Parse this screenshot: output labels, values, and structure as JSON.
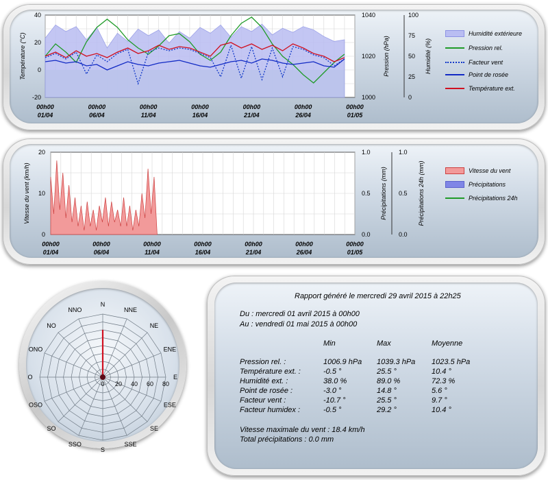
{
  "colors": {
    "humidity_fill": "#b9bdf2",
    "humidity_edge": "#8d93e4",
    "pressure": "#1f9b28",
    "windchill": "#1037c8",
    "dewpoint": "#1129c4",
    "temperature": "#d01020",
    "green_fill": "#c9f0c9",
    "wind_fill": "#f29a9a",
    "wind_edge": "#cc4040",
    "precip": "#7f86e6",
    "precip24": "#1f9b28"
  },
  "chart_data": [
    {
      "type": "line",
      "ylabel_left": "Température (°C)",
      "ylabel_pressure": "Pression (hPa)",
      "ylabel_humidity": "Humidité (%)",
      "y_left_ticks": [
        "40",
        "20",
        "0",
        "-20"
      ],
      "y_pressure_ticks": [
        "1040",
        "1020",
        "1000"
      ],
      "y_humidity_ticks": [
        "100",
        "75",
        "50",
        "25",
        "0"
      ],
      "ylim_left": [
        -20,
        40
      ],
      "ylim_pressure": [
        1000,
        1040
      ],
      "ylim_humidity": [
        0,
        100
      ],
      "x_ticks": [
        {
          "time": "00h00",
          "date": "01/04"
        },
        {
          "time": "00h00",
          "date": "06/04"
        },
        {
          "time": "00h00",
          "date": "11/04"
        },
        {
          "time": "00h00",
          "date": "16/04"
        },
        {
          "time": "00h00",
          "date": "21/04"
        },
        {
          "time": "00h00",
          "date": "26/04"
        },
        {
          "time": "00h00",
          "date": "01/05"
        }
      ],
      "legend": [
        {
          "label": "Humidité extérieure",
          "style": "fill",
          "color": "#b9bdf2"
        },
        {
          "label": "Pression rel.",
          "style": "line",
          "color": "#1f9b28"
        },
        {
          "label": "Facteur vent",
          "style": "dotted",
          "color": "#1037c8"
        },
        {
          "label": "Point de rosée",
          "style": "line",
          "color": "#1129c4"
        },
        {
          "label": "Température ext.",
          "style": "line",
          "color": "#d01020"
        }
      ],
      "series": [
        {
          "name": "Pression rel.",
          "unit": "hPa",
          "points": [
            [
              0,
              1020
            ],
            [
              1,
              1026
            ],
            [
              2,
              1022
            ],
            [
              3,
              1017
            ],
            [
              4,
              1027
            ],
            [
              5,
              1034
            ],
            [
              6,
              1038
            ],
            [
              7,
              1034
            ],
            [
              8,
              1028
            ],
            [
              9,
              1024
            ],
            [
              10,
              1021
            ],
            [
              11,
              1025
            ],
            [
              12,
              1030
            ],
            [
              13,
              1031
            ],
            [
              14,
              1027
            ],
            [
              15,
              1021
            ],
            [
              16,
              1018
            ],
            [
              17,
              1022
            ],
            [
              18,
              1030
            ],
            [
              19,
              1036
            ],
            [
              20,
              1039
            ],
            [
              21,
              1034
            ],
            [
              22,
              1026
            ],
            [
              23,
              1020
            ],
            [
              24,
              1016
            ],
            [
              25,
              1011
            ],
            [
              26,
              1007
            ],
            [
              27,
              1012
            ],
            [
              28,
              1017
            ],
            [
              29,
              1021
            ]
          ]
        },
        {
          "name": "Température ext.",
          "unit": "°C",
          "points": [
            [
              0,
              10
            ],
            [
              1,
              13
            ],
            [
              2,
              9
            ],
            [
              3,
              14
            ],
            [
              4,
              10
            ],
            [
              5,
              12
            ],
            [
              6,
              9
            ],
            [
              7,
              13
            ],
            [
              8,
              16
            ],
            [
              9,
              12
            ],
            [
              10,
              14
            ],
            [
              11,
              18
            ],
            [
              12,
              15
            ],
            [
              13,
              17
            ],
            [
              14,
              16
            ],
            [
              15,
              13
            ],
            [
              16,
              10
            ],
            [
              17,
              18
            ],
            [
              18,
              20
            ],
            [
              19,
              16
            ],
            [
              20,
              19
            ],
            [
              21,
              15
            ],
            [
              22,
              18
            ],
            [
              23,
              14
            ],
            [
              24,
              19
            ],
            [
              25,
              16
            ],
            [
              26,
              12
            ],
            [
              27,
              10
            ],
            [
              28,
              6
            ],
            [
              29,
              9
            ]
          ]
        },
        {
          "name": "Point de rosée",
          "unit": "°C",
          "points": [
            [
              0,
              6
            ],
            [
              1,
              7
            ],
            [
              2,
              5
            ],
            [
              3,
              6
            ],
            [
              4,
              3
            ],
            [
              5,
              4
            ],
            [
              6,
              0
            ],
            [
              7,
              3
            ],
            [
              8,
              6
            ],
            [
              9,
              4
            ],
            [
              10,
              3
            ],
            [
              11,
              5
            ],
            [
              12,
              6
            ],
            [
              13,
              7
            ],
            [
              14,
              5
            ],
            [
              15,
              3
            ],
            [
              16,
              2
            ],
            [
              17,
              4
            ],
            [
              18,
              6
            ],
            [
              19,
              7
            ],
            [
              20,
              5
            ],
            [
              21,
              8
            ],
            [
              22,
              7
            ],
            [
              23,
              5
            ],
            [
              24,
              4
            ],
            [
              25,
              5
            ],
            [
              26,
              6
            ],
            [
              27,
              3
            ],
            [
              28,
              2
            ],
            [
              29,
              8
            ]
          ]
        },
        {
          "name": "Facteur vent",
          "unit": "°C",
          "points": [
            [
              0,
              9
            ],
            [
              1,
              12
            ],
            [
              2,
              8
            ],
            [
              3,
              13
            ],
            [
              4,
              -3
            ],
            [
              5,
              11
            ],
            [
              6,
              6
            ],
            [
              7,
              12
            ],
            [
              8,
              15
            ],
            [
              9,
              -10
            ],
            [
              10,
              13
            ],
            [
              11,
              16
            ],
            [
              12,
              14
            ],
            [
              13,
              16
            ],
            [
              14,
              15
            ],
            [
              15,
              12
            ],
            [
              16,
              9
            ],
            [
              17,
              -5
            ],
            [
              18,
              18
            ],
            [
              19,
              -6
            ],
            [
              20,
              17
            ],
            [
              21,
              -7
            ],
            [
              22,
              16
            ],
            [
              23,
              -5
            ],
            [
              24,
              17
            ],
            [
              25,
              15
            ],
            [
              26,
              11
            ],
            [
              27,
              9
            ],
            [
              28,
              3
            ],
            [
              29,
              8
            ]
          ]
        },
        {
          "name": "Humidité extérieure",
          "unit": "%",
          "points": [
            [
              0,
              72
            ],
            [
              1,
              88
            ],
            [
              2,
              80
            ],
            [
              3,
              86
            ],
            [
              4,
              70
            ],
            [
              5,
              85
            ],
            [
              6,
              60
            ],
            [
              7,
              78
            ],
            [
              8,
              68
            ],
            [
              9,
              83
            ],
            [
              10,
              75
            ],
            [
              11,
              82
            ],
            [
              12,
              66
            ],
            [
              13,
              80
            ],
            [
              14,
              72
            ],
            [
              15,
              85
            ],
            [
              16,
              78
            ],
            [
              17,
              88
            ],
            [
              18,
              73
            ],
            [
              19,
              86
            ],
            [
              20,
              80
            ],
            [
              21,
              89
            ],
            [
              22,
              76
            ],
            [
              23,
              84
            ],
            [
              24,
              79
            ],
            [
              25,
              86
            ],
            [
              26,
              82
            ],
            [
              27,
              74
            ],
            [
              28,
              68
            ],
            [
              29,
              70
            ]
          ]
        }
      ]
    },
    {
      "type": "area",
      "ylabel_left": "Vitesse du vent (km/h)",
      "ylabel_precip": "Précipitations (mm)",
      "ylabel_precip24": "Précipitations 24h (mm)",
      "y_left_ticks": [
        "20",
        "10",
        "0"
      ],
      "y_precip_ticks": [
        "1.0",
        "0.5",
        "0.0"
      ],
      "y_precip24_ticks": [
        "1.0",
        "0.5",
        "0.0"
      ],
      "ylim_left": [
        0,
        20
      ],
      "ylim_precip": [
        0,
        1
      ],
      "x_ticks": [
        {
          "time": "00h00",
          "date": "01/04"
        },
        {
          "time": "00h00",
          "date": "06/04"
        },
        {
          "time": "00h00",
          "date": "11/04"
        },
        {
          "time": "00h00",
          "date": "16/04"
        },
        {
          "time": "00h00",
          "date": "21/04"
        },
        {
          "time": "00h00",
          "date": "26/04"
        },
        {
          "time": "00h00",
          "date": "01/05"
        }
      ],
      "legend": [
        {
          "label": "Vitesse du vent",
          "style": "fill",
          "color": "#f29a9a"
        },
        {
          "label": "Précipitations",
          "style": "fill",
          "color": "#7f86e6"
        },
        {
          "label": "Précipitations 24h",
          "style": "line",
          "color": "#1f9b28"
        }
      ],
      "series": [
        {
          "name": "Vitesse du vent",
          "unit": "km/h",
          "points": [
            [
              0,
              14
            ],
            [
              0.3,
              5
            ],
            [
              0.6,
              18
            ],
            [
              0.9,
              6
            ],
            [
              1.2,
              15
            ],
            [
              1.5,
              4
            ],
            [
              1.8,
              12
            ],
            [
              2.1,
              3
            ],
            [
              2.4,
              9
            ],
            [
              2.7,
              2
            ],
            [
              3.0,
              7
            ],
            [
              3.3,
              1
            ],
            [
              3.6,
              8
            ],
            [
              3.9,
              2
            ],
            [
              4.2,
              6
            ],
            [
              4.5,
              1
            ],
            [
              4.8,
              7
            ],
            [
              5.1,
              3
            ],
            [
              5.4,
              9
            ],
            [
              5.7,
              2
            ],
            [
              6.0,
              8
            ],
            [
              6.3,
              3
            ],
            [
              6.6,
              6
            ],
            [
              6.9,
              2
            ],
            [
              7.2,
              9
            ],
            [
              7.5,
              2
            ],
            [
              7.8,
              7
            ],
            [
              8.1,
              1
            ],
            [
              8.4,
              6
            ],
            [
              8.7,
              2
            ],
            [
              9.0,
              10
            ],
            [
              9.3,
              4
            ],
            [
              9.6,
              16
            ],
            [
              9.9,
              5
            ],
            [
              10.2,
              14
            ],
            [
              10.5,
              0
            ]
          ]
        },
        {
          "name": "Précipitations",
          "unit": "mm",
          "points": []
        },
        {
          "name": "Précipitations 24h",
          "unit": "mm",
          "points": []
        }
      ]
    },
    {
      "type": "wind-rose",
      "directions": [
        "N",
        "NNE",
        "NE",
        "ENE",
        "E",
        "ESE",
        "SE",
        "SSE",
        "S",
        "SSO",
        "SO",
        "OSO",
        "O",
        "ONO",
        "NO",
        "NNO"
      ],
      "radial_ticks": [
        "0",
        "20",
        "40",
        "60",
        "80"
      ],
      "rmax": 80,
      "values": [
        {
          "direction": "N",
          "value": 60
        }
      ]
    }
  ],
  "report": {
    "title": "Rapport généré le mercredi 29 avril 2015 à 22h25",
    "from": "Du : mercredi 01 avril 2015 à 00h00",
    "to": "Au : vendredi 01 mai 2015 à 00h00",
    "headers": [
      "Min",
      "Max",
      "Moyenne"
    ],
    "rows": [
      {
        "label": "Pression rel. :",
        "min": "1006.9 hPa",
        "max": "1039.3 hPa",
        "avg": "1023.5 hPa"
      },
      {
        "label": "Température ext. :",
        "min": "-0.5 °",
        "max": "25.5 °",
        "avg": "10.4 °"
      },
      {
        "label": "Humidité ext. :",
        "min": "38.0 %",
        "max": "89.0 %",
        "avg": "72.3 %"
      },
      {
        "label": "Point de rosée :",
        "min": "-3.0 °",
        "max": "14.8 °",
        "avg": "5.6 °"
      },
      {
        "label": "Facteur vent :",
        "min": "-10.7 °",
        "max": "25.5 °",
        "avg": "9.7 °"
      },
      {
        "label": "Facteur humidex :",
        "min": "-0.5 °",
        "max": "29.2 °",
        "avg": "10.4 °"
      }
    ],
    "max_wind": "Vitesse maximale du vent : 18.4 km/h",
    "total_precip": "Total précipitations : 0.0 mm"
  }
}
